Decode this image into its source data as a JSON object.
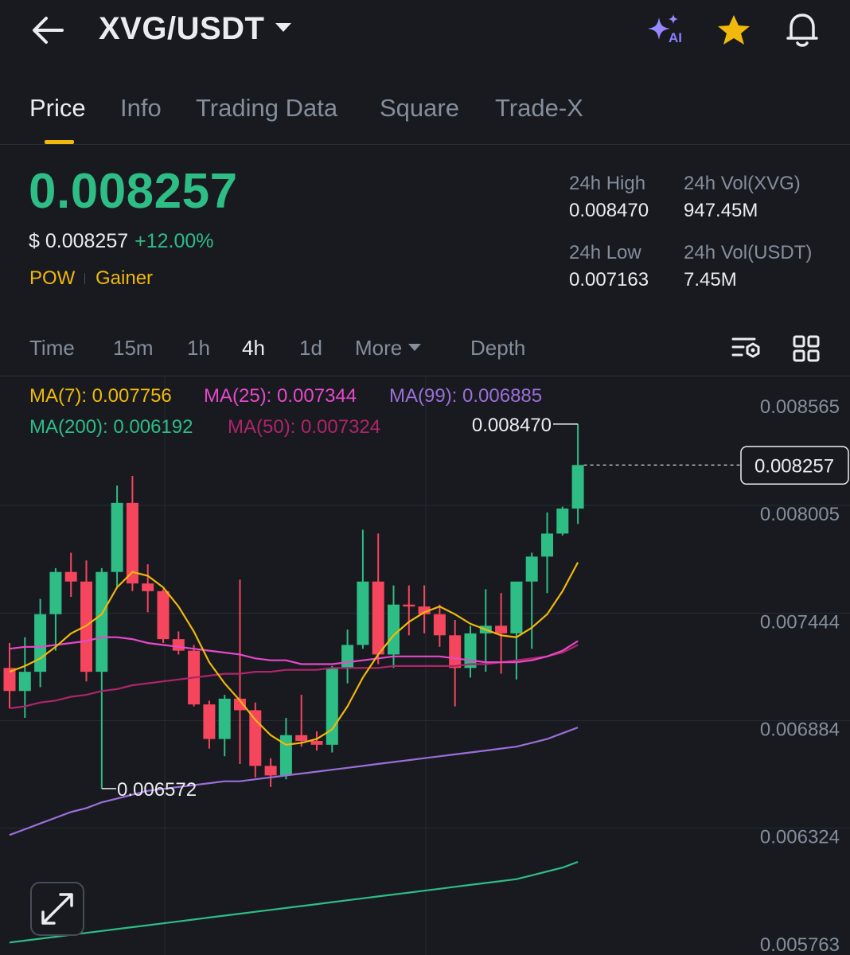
{
  "header": {
    "pair": "XVG/USDT",
    "icons": {
      "back": "back-arrow-icon",
      "ai": "ai-sparkle-icon",
      "favorite": "star-icon",
      "alert": "bell-icon"
    },
    "ai_label": "AI"
  },
  "tabs": [
    {
      "label": "Price",
      "active": true
    },
    {
      "label": "Info",
      "active": false
    },
    {
      "label": "Trading Data",
      "active": false
    },
    {
      "label": "Square",
      "active": false
    },
    {
      "label": "Trade-X",
      "active": false
    }
  ],
  "price": {
    "last": "0.008257",
    "usd": "$ 0.008257",
    "change": "+12.00%",
    "tags": [
      "POW",
      "Gainer"
    ]
  },
  "stats": {
    "high_label": "24h High",
    "high": "0.008470",
    "low_label": "24h Low",
    "low": "0.007163",
    "vol_base_label": "24h Vol(XVG)",
    "vol_base": "947.45M",
    "vol_quote_label": "24h Vol(USDT)",
    "vol_quote": "7.45M"
  },
  "timeframes": [
    {
      "label": "Time",
      "active": false
    },
    {
      "label": "15m",
      "active": false
    },
    {
      "label": "1h",
      "active": false
    },
    {
      "label": "4h",
      "active": true
    },
    {
      "label": "1d",
      "active": false
    },
    {
      "label": "More",
      "active": false
    },
    {
      "label": "Depth",
      "active": false
    }
  ],
  "toolbar_icons": {
    "indicator": "indicator-settings-icon",
    "layout": "grid-layout-icon",
    "expand": "expand-icon"
  },
  "ma_legend": [
    {
      "label": "MA(7): 0.007756",
      "color": "#f0b90b"
    },
    {
      "label": "MA(25): 0.007344",
      "color": "#e649c8"
    },
    {
      "label": "MA(99): 0.006885",
      "color": "#9b6fd8"
    },
    {
      "label": "MA(200): 0.006192",
      "color": "#2ebd85"
    },
    {
      "label": "MA(50): 0.007324",
      "color": "#b0246b"
    }
  ],
  "colors": {
    "up": "#2ebd85",
    "down": "#f6465d",
    "accent": "#f0b90b",
    "bg": "#181a20"
  },
  "chart_data": {
    "type": "candlestick",
    "y_ticks": [
      "0.008565",
      "0.008005",
      "0.007444",
      "0.006884",
      "0.006324",
      "0.005763"
    ],
    "y_range": [
      0.005763,
      0.008565
    ],
    "last_price_label": "0.008257",
    "last_price": 0.008257,
    "high_marker": {
      "label": "0.008470",
      "value": 0.00847
    },
    "low_marker": {
      "label": "0.006572",
      "value": 0.006572
    },
    "candles": [
      {
        "o": 0.0072,
        "h": 0.00733,
        "l": 0.00699,
        "c": 0.00708
      },
      {
        "o": 0.00708,
        "h": 0.00736,
        "l": 0.00694,
        "c": 0.00718
      },
      {
        "o": 0.00718,
        "h": 0.00756,
        "l": 0.0071,
        "c": 0.00748
      },
      {
        "o": 0.00748,
        "h": 0.00772,
        "l": 0.00729,
        "c": 0.0077
      },
      {
        "o": 0.0077,
        "h": 0.0078,
        "l": 0.00757,
        "c": 0.00765
      },
      {
        "o": 0.00765,
        "h": 0.00776,
        "l": 0.00713,
        "c": 0.00718
      },
      {
        "o": 0.00718,
        "h": 0.00772,
        "l": 0.006572,
        "c": 0.0077
      },
      {
        "o": 0.0077,
        "h": 0.00815,
        "l": 0.00762,
        "c": 0.00806
      },
      {
        "o": 0.00806,
        "h": 0.0082,
        "l": 0.0076,
        "c": 0.00764
      },
      {
        "o": 0.00764,
        "h": 0.00774,
        "l": 0.00749,
        "c": 0.0076
      },
      {
        "o": 0.0076,
        "h": 0.00761,
        "l": 0.00733,
        "c": 0.00735
      },
      {
        "o": 0.00735,
        "h": 0.00739,
        "l": 0.00727,
        "c": 0.00729
      },
      {
        "o": 0.00729,
        "h": 0.00732,
        "l": 0.007,
        "c": 0.00701
      },
      {
        "o": 0.00701,
        "h": 0.00703,
        "l": 0.00678,
        "c": 0.00683
      },
      {
        "o": 0.00683,
        "h": 0.00706,
        "l": 0.00674,
        "c": 0.00704
      },
      {
        "o": 0.00704,
        "h": 0.00766,
        "l": 0.0067,
        "c": 0.00698
      },
      {
        "o": 0.00698,
        "h": 0.00702,
        "l": 0.00663,
        "c": 0.00669
      },
      {
        "o": 0.00669,
        "h": 0.00673,
        "l": 0.00658,
        "c": 0.00664
      },
      {
        "o": 0.00664,
        "h": 0.00694,
        "l": 0.00662,
        "c": 0.00685
      },
      {
        "o": 0.00685,
        "h": 0.00706,
        "l": 0.00679,
        "c": 0.00682
      },
      {
        "o": 0.00682,
        "h": 0.00687,
        "l": 0.00677,
        "c": 0.0068
      },
      {
        "o": 0.0068,
        "h": 0.00721,
        "l": 0.00676,
        "c": 0.0072
      },
      {
        "o": 0.0072,
        "h": 0.0074,
        "l": 0.00712,
        "c": 0.00732
      },
      {
        "o": 0.00732,
        "h": 0.00792,
        "l": 0.0073,
        "c": 0.00765
      },
      {
        "o": 0.00765,
        "h": 0.0079,
        "l": 0.00722,
        "c": 0.00727
      },
      {
        "o": 0.00727,
        "h": 0.00763,
        "l": 0.0072,
        "c": 0.00753
      },
      {
        "o": 0.00753,
        "h": 0.00763,
        "l": 0.00737,
        "c": 0.00752
      },
      {
        "o": 0.00752,
        "h": 0.00763,
        "l": 0.00738,
        "c": 0.00748
      },
      {
        "o": 0.00748,
        "h": 0.00753,
        "l": 0.00731,
        "c": 0.00737
      },
      {
        "o": 0.00737,
        "h": 0.00745,
        "l": 0.007,
        "c": 0.0072
      },
      {
        "o": 0.0072,
        "h": 0.00742,
        "l": 0.00715,
        "c": 0.00738
      },
      {
        "o": 0.00738,
        "h": 0.00761,
        "l": 0.00718,
        "c": 0.00742
      },
      {
        "o": 0.00742,
        "h": 0.00759,
        "l": 0.00717,
        "c": 0.00738
      },
      {
        "o": 0.00738,
        "h": 0.00764,
        "l": 0.00714,
        "c": 0.00765
      },
      {
        "o": 0.00765,
        "h": 0.0078,
        "l": 0.0073,
        "c": 0.00778
      },
      {
        "o": 0.00778,
        "h": 0.00801,
        "l": 0.00759,
        "c": 0.0079
      },
      {
        "o": 0.0079,
        "h": 0.00804,
        "l": 0.00789,
        "c": 0.00803
      },
      {
        "o": 0.00803,
        "h": 0.00847,
        "l": 0.00795,
        "c": 0.008257
      }
    ],
    "ma7": [
      0.00718,
      0.00721,
      0.00725,
      0.00731,
      0.00738,
      0.00742,
      0.00748,
      0.00762,
      0.0077,
      0.00768,
      0.00762,
      0.00752,
      0.00739,
      0.00723,
      0.00712,
      0.00703,
      0.00693,
      0.00685,
      0.0068,
      0.00681,
      0.00683,
      0.00688,
      0.007,
      0.00715,
      0.00727,
      0.00737,
      0.00744,
      0.00749,
      0.00752,
      0.00748,
      0.00743,
      0.0074,
      0.00737,
      0.00736,
      0.00741,
      0.00748,
      0.0076,
      0.00775
    ],
    "ma25": [
      0.0073,
      0.00731,
      0.00731,
      0.00732,
      0.00733,
      0.00734,
      0.00736,
      0.00736,
      0.00735,
      0.00733,
      0.00732,
      0.00731,
      0.0073,
      0.00729,
      0.00728,
      0.00727,
      0.00725,
      0.00724,
      0.00724,
      0.00722,
      0.00722,
      0.00722,
      0.00723,
      0.00724,
      0.00725,
      0.00726,
      0.00726,
      0.00726,
      0.00726,
      0.00725,
      0.00724,
      0.00723,
      0.00723,
      0.00723,
      0.00724,
      0.00726,
      0.00729,
      0.00734
    ],
    "ma50": [
      0.00699,
      0.007,
      0.00702,
      0.00703,
      0.00705,
      0.00706,
      0.00708,
      0.00709,
      0.00711,
      0.00712,
      0.00713,
      0.00714,
      0.00715,
      0.00716,
      0.00717,
      0.00717,
      0.00718,
      0.00718,
      0.00719,
      0.00719,
      0.00719,
      0.0072,
      0.0072,
      0.0072,
      0.0072,
      0.00721,
      0.00721,
      0.00721,
      0.00721,
      0.00721,
      0.00722,
      0.00722,
      0.00723,
      0.00724,
      0.00725,
      0.00726,
      0.00728,
      0.00732
    ],
    "ma99": [
      0.00633,
      0.00636,
      0.00639,
      0.00642,
      0.00645,
      0.00647,
      0.0065,
      0.00652,
      0.00654,
      0.00656,
      0.00657,
      0.00658,
      0.00659,
      0.0066,
      0.00661,
      0.00661,
      0.00662,
      0.00663,
      0.00664,
      0.00665,
      0.00666,
      0.00667,
      0.00668,
      0.00669,
      0.0067,
      0.00671,
      0.00672,
      0.00673,
      0.00674,
      0.00675,
      0.00676,
      0.00677,
      0.00678,
      0.00679,
      0.00681,
      0.00683,
      0.00686,
      0.00689
    ],
    "ma200": [
      0.00577,
      0.00578,
      0.00579,
      0.0058,
      0.00581,
      0.00582,
      0.00583,
      0.00584,
      0.00585,
      0.00586,
      0.00587,
      0.00588,
      0.00589,
      0.0059,
      0.00591,
      0.00592,
      0.00593,
      0.00594,
      0.00595,
      0.00596,
      0.00597,
      0.00598,
      0.00599,
      0.006,
      0.00601,
      0.00602,
      0.00603,
      0.00604,
      0.00605,
      0.00606,
      0.00607,
      0.00608,
      0.00609,
      0.0061,
      0.00612,
      0.00614,
      0.00616,
      0.00619
    ]
  }
}
